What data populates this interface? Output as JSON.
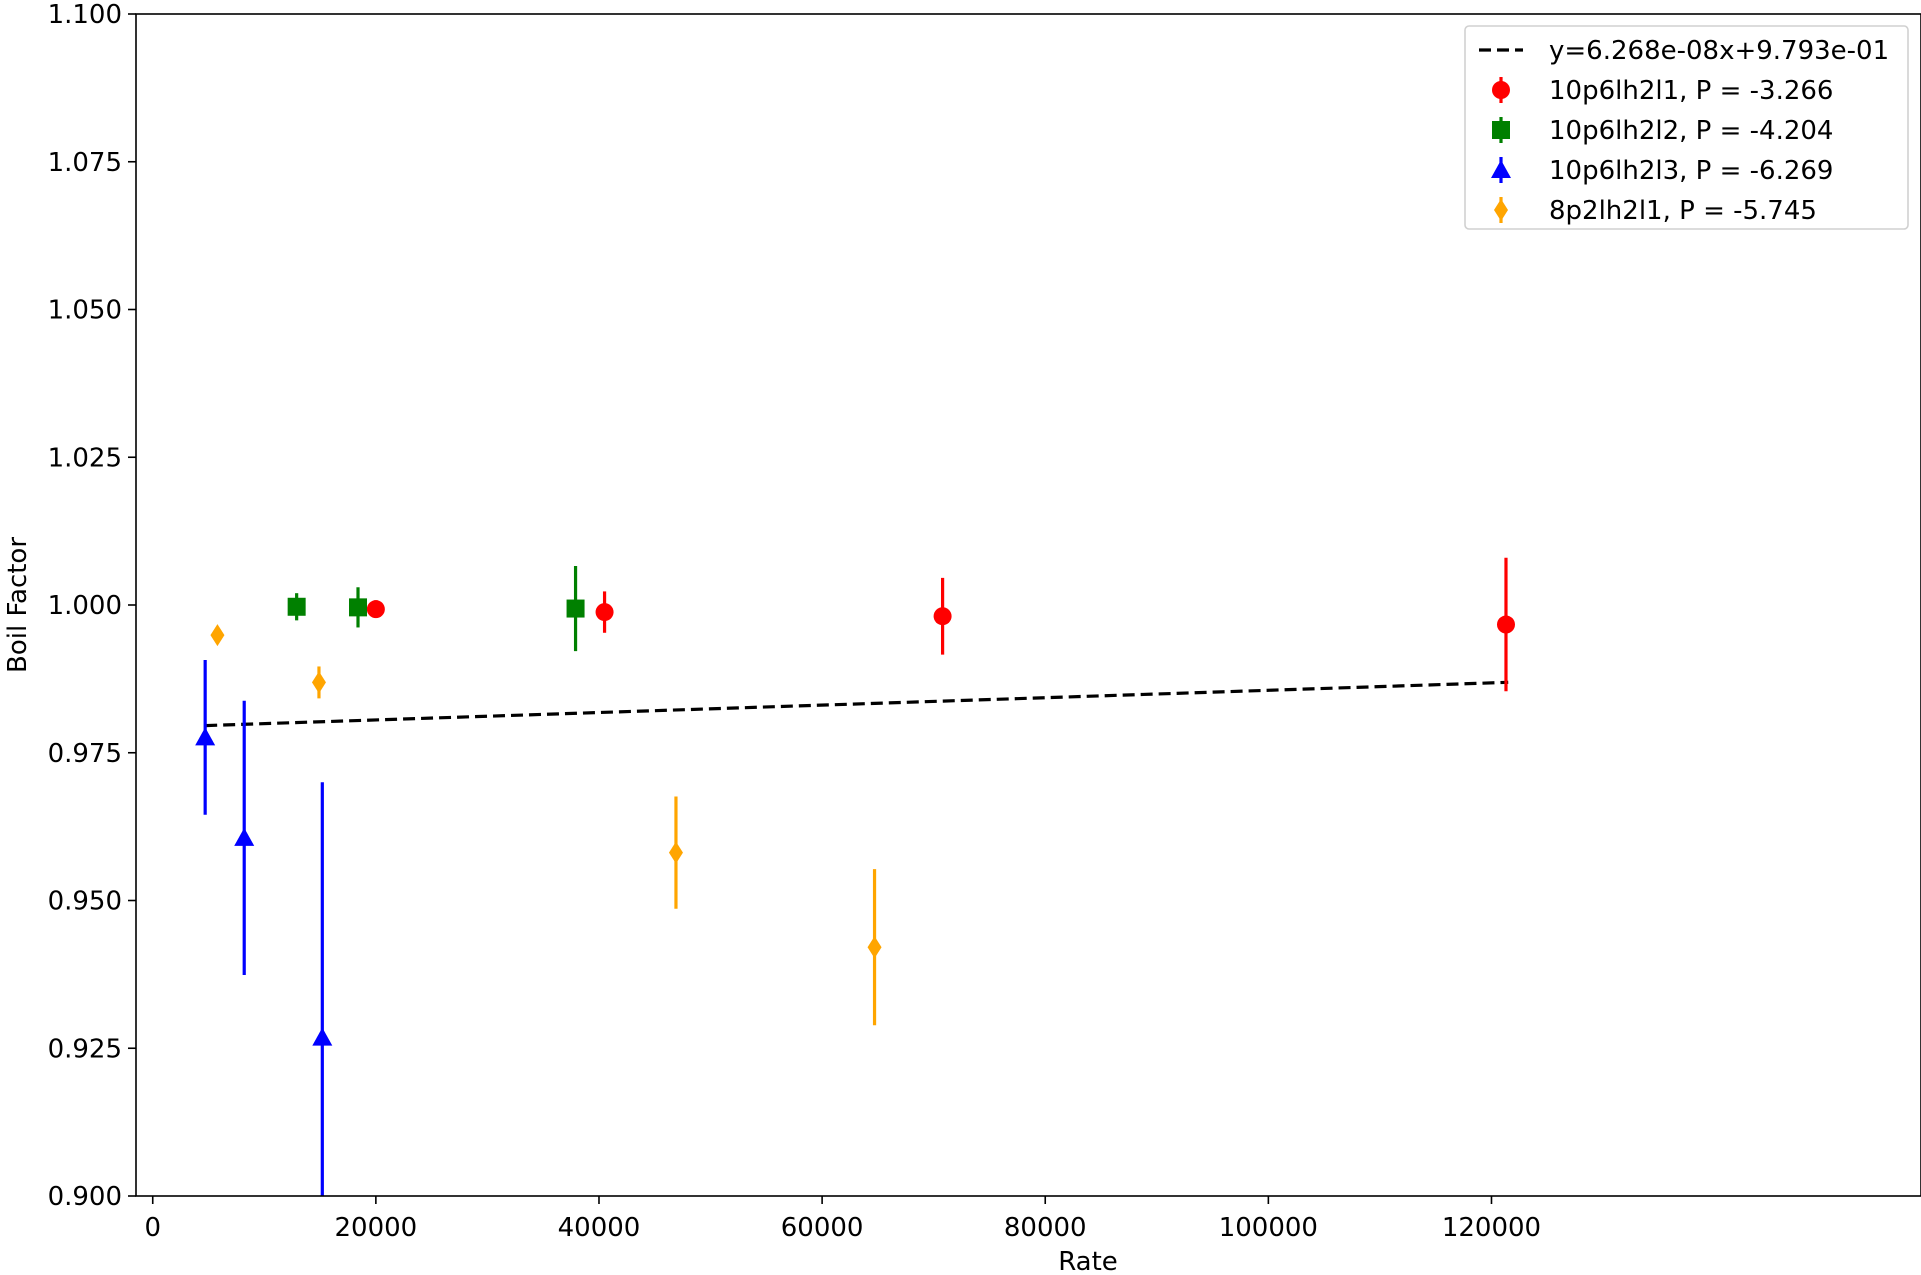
{
  "chart_data": {
    "type": "scatter",
    "xlabel": "Rate",
    "ylabel": "Boil Factor",
    "xlim": [
      -1500,
      158500
    ],
    "ylim": [
      0.9,
      1.1
    ],
    "x_ticks": [
      0,
      20000,
      40000,
      60000,
      80000,
      100000,
      120000
    ],
    "y_ticks": [
      0.9,
      0.925,
      0.95,
      0.975,
      1.0,
      1.025,
      1.05,
      1.075,
      1.1
    ],
    "y_tick_labels": [
      "0.900",
      "0.925",
      "0.950",
      "0.975",
      "1.000",
      "1.025",
      "1.050",
      "1.075",
      "1.100"
    ],
    "grid": false,
    "legend_position": "top-right",
    "fit_line": {
      "label": "y=6.268e-08x+9.793e-01",
      "slope": 6.268e-08,
      "intercept": 0.9793,
      "x_range": [
        4700,
        121500
      ],
      "color": "#000000",
      "style": "dashed"
    },
    "series": [
      {
        "name": "10p6lh2l1, P = -3.266",
        "color": "#ff0000",
        "marker": "circle",
        "points": [
          {
            "x": 20000,
            "y": 0.9993,
            "err": 0.0015
          },
          {
            "x": 40500,
            "y": 0.9988,
            "err": 0.0035
          },
          {
            "x": 70800,
            "y": 0.9981,
            "err": 0.0065
          },
          {
            "x": 121300,
            "y": 0.9967,
            "err": 0.0113
          }
        ]
      },
      {
        "name": "10p6lh2l2, P = -4.204",
        "color": "#008000",
        "marker": "square",
        "points": [
          {
            "x": 12900,
            "y": 0.9997,
            "err": 0.0023
          },
          {
            "x": 18400,
            "y": 0.9996,
            "err": 0.0034
          },
          {
            "x": 37900,
            "y": 0.9994,
            "err": 0.0072
          }
        ]
      },
      {
        "name": "10p6lh2l3, P = -6.269",
        "color": "#0000ff",
        "marker": "triangle",
        "points": [
          {
            "x": 4700,
            "y": 0.9776,
            "err": 0.0131
          },
          {
            "x": 8200,
            "y": 0.9606,
            "err": 0.0232
          },
          {
            "x": 15200,
            "y": 0.9268,
            "err": 0.0432
          }
        ]
      },
      {
        "name": "8p2lh2l1, P = -5.745",
        "color": "#ffa500",
        "marker": "diamond",
        "points": [
          {
            "x": 5800,
            "y": 0.9949,
            "err": 0.0012
          },
          {
            "x": 14900,
            "y": 0.9869,
            "err": 0.0027
          },
          {
            "x": 46900,
            "y": 0.9581,
            "err": 0.0095
          },
          {
            "x": 64700,
            "y": 0.9421,
            "err": 0.0132
          }
        ]
      }
    ]
  }
}
